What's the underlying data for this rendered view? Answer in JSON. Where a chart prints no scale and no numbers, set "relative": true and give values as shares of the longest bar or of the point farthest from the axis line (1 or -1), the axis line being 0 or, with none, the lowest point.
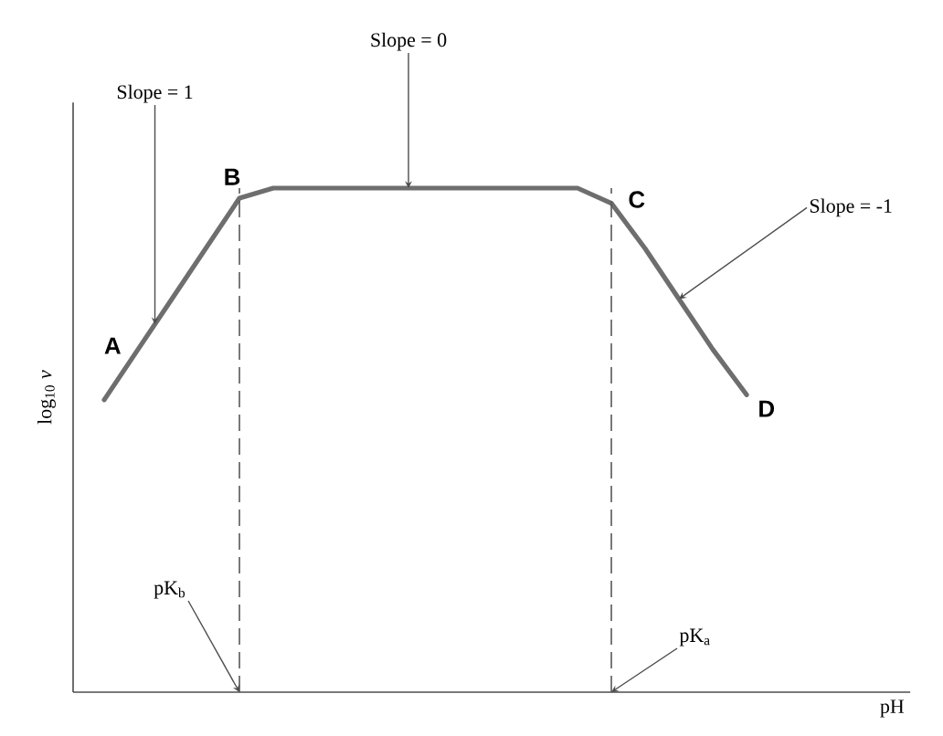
{
  "chart_data": {
    "type": "line",
    "ylabel": "log$_{10}$ *v*",
    "relative": true,
    "categories": [
      null,
      null,
      null,
      null,
      null,
      null,
      null,
      null,
      null,
      null,
      null,
      null,
      null,
      null,
      null,
      null,
      null,
      null,
      null,
      null
    ],
    "series": [
      {
        "color": "#6e6e6e",
        "values": [
          0.58,
          0.68,
          0.78,
          0.88,
          0.98,
          1,
          1,
          1,
          1,
          1,
          1,
          1,
          1,
          1,
          1,
          0.97,
          0.88,
          0.78,
          0.68,
          0.59
        ]
      }
    ],
    "tick_labels": false,
    "marker": "none",
    "line_style": "solid",
    "annotations": [
      "A",
      "B",
      "C",
      "D",
      "Slope = 1",
      "Slope = 0",
      "Slope = -1",
      "pK$_{b}$",
      "pK$_{a}$",
      "pH"
    ]
  }
}
